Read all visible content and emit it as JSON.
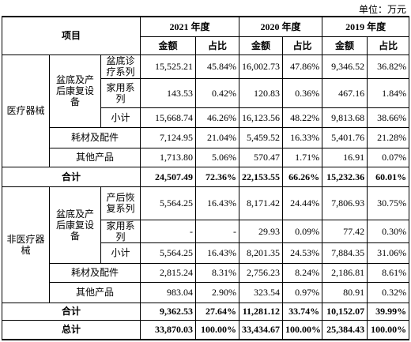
{
  "unit": "单位：万元",
  "table": {
    "header": {
      "item": "项目",
      "years": [
        "2021 年度",
        "2020 年度",
        "2019 年度"
      ],
      "sub": [
        "金额",
        "占比",
        "金额",
        "占比",
        "金额",
        "占比"
      ]
    },
    "groups": [
      {
        "name": "医疗器械",
        "subgroup": "盆底及产后康复设备",
        "subrows": [
          {
            "label": "盆底诊疗系列",
            "cells": [
              "15,525.21",
              "45.84%",
              "16,002.73",
              "47.86%",
              "9,346.52",
              "36.82%"
            ]
          },
          {
            "label": "家用系列",
            "cells": [
              "143.53",
              "0.42%",
              "120.83",
              "0.36%",
              "467.16",
              "1.84%"
            ]
          },
          {
            "label": "小计",
            "cells": [
              "15,668.74",
              "46.26%",
              "16,123.56",
              "48.22%",
              "9,813.68",
              "38.66%"
            ]
          }
        ],
        "rows": [
          {
            "label": "耗材及配件",
            "cells": [
              "7,124.95",
              "21.04%",
              "5,459.52",
              "16.33%",
              "5,401.76",
              "21.28%"
            ]
          },
          {
            "label": "其他产品",
            "cells": [
              "1,713.80",
              "5.06%",
              "570.47",
              "1.71%",
              "16.91",
              "0.07%"
            ]
          }
        ],
        "total": {
          "label": "合计",
          "cells": [
            "24,507.49",
            "72.36%",
            "22,153.55",
            "66.26%",
            "15,232.36",
            "60.01%"
          ]
        }
      },
      {
        "name": "非医疗器械",
        "subgroup": "盆底及产后康复设备",
        "subrows": [
          {
            "label": "产后恢复系列",
            "cells": [
              "5,564.25",
              "16.43%",
              "8,171.42",
              "24.44%",
              "7,806.93",
              "30.75%"
            ]
          },
          {
            "label": "家用系列",
            "cells": [
              "-",
              "-",
              "29.93",
              "0.09%",
              "77.42",
              "0.30%"
            ]
          },
          {
            "label": "小计",
            "cells": [
              "5,564.25",
              "16.43%",
              "8,201.35",
              "24.53%",
              "7,884.35",
              "31.06%"
            ]
          }
        ],
        "rows": [
          {
            "label": "耗材及配件",
            "cells": [
              "2,815.24",
              "8.31%",
              "2,756.23",
              "8.24%",
              "2,186.81",
              "8.61%"
            ]
          },
          {
            "label": "其他产品",
            "cells": [
              "983.04",
              "2.90%",
              "323.54",
              "0.97%",
              "80.91",
              "0.32%"
            ]
          }
        ],
        "total": {
          "label": "合计",
          "cells": [
            "9,362.53",
            "27.64%",
            "11,281.12",
            "33.74%",
            "10,152.07",
            "39.99%"
          ]
        }
      }
    ],
    "grand_total": {
      "label": "总计",
      "cells": [
        "33,870.03",
        "100.00%",
        "33,434.67",
        "100.00%",
        "25,384.43",
        "100.00%"
      ]
    }
  }
}
